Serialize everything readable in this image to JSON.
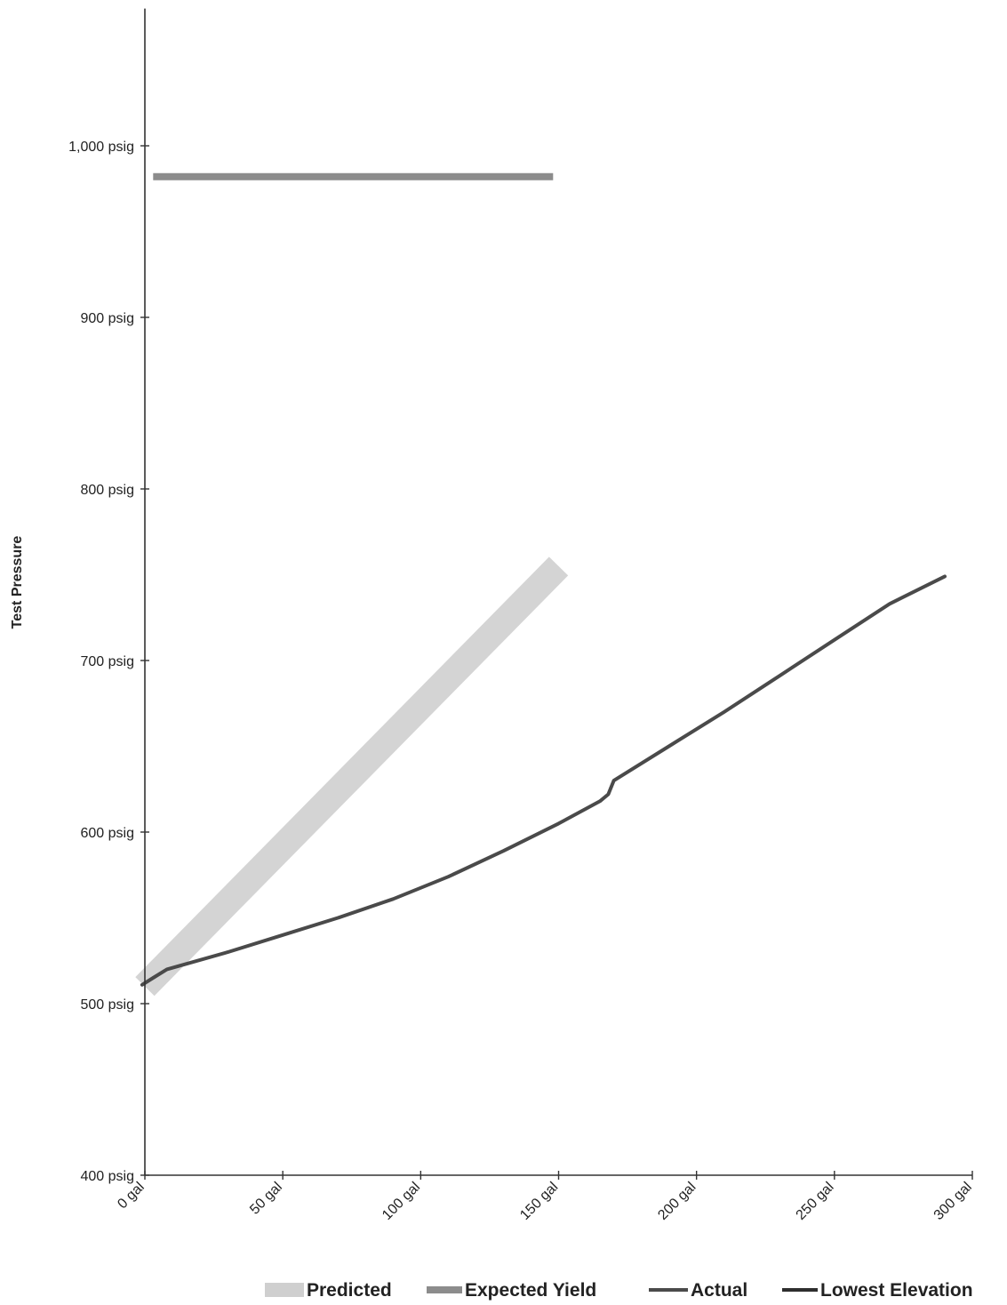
{
  "chart_data": {
    "type": "line",
    "title": "",
    "ylabel": "Test Pressure",
    "xlabel": "",
    "xlim": [
      0,
      300
    ],
    "ylim": [
      400,
      1080
    ],
    "x_ticks": [
      0,
      50,
      100,
      150,
      200,
      250,
      300
    ],
    "x_tick_labels": [
      "0 gal",
      "50 gal",
      "100 gal",
      "150 gal",
      "200 gal",
      "250 gal",
      "300 gal"
    ],
    "y_ticks": [
      400,
      500,
      600,
      700,
      800,
      900,
      1000
    ],
    "y_tick_labels": [
      "400 psig",
      "500 psig",
      "600 psig",
      "700 psig",
      "800 psig",
      "900 psig",
      "1,000 psig"
    ],
    "grid": false,
    "legend_position": "bottom-right",
    "series": [
      {
        "name": "Predicted",
        "color": "#cfcfcf",
        "x": [
          0,
          150
        ],
        "y": [
          510,
          755
        ]
      },
      {
        "name": "Expected Yield",
        "color": "#8c8c8c",
        "x": [
          3,
          148
        ],
        "y": [
          982,
          982
        ]
      },
      {
        "name": "Actual",
        "color": "#4a4a4a",
        "x": [
          -1,
          3,
          8,
          30,
          50,
          70,
          90,
          110,
          130,
          150,
          165,
          168,
          170,
          190,
          210,
          230,
          250,
          270,
          290
        ],
        "y": [
          511,
          515,
          520,
          530,
          540,
          550,
          561,
          574,
          589,
          605,
          618,
          622,
          630,
          650,
          670,
          691,
          712,
          733,
          749
        ]
      },
      {
        "name": "Lowest Elevation",
        "color": "#2e2e2e",
        "x": [],
        "y": []
      }
    ]
  }
}
